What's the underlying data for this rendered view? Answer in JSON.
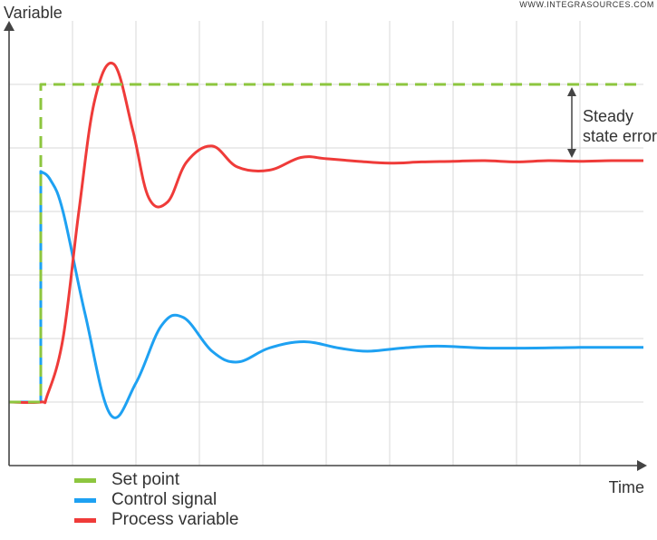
{
  "watermark": "WWW.INTEGRASOURCES.COM",
  "chart_data": {
    "type": "line",
    "ylabel": "Variable",
    "xlabel": "Time",
    "grid": true,
    "legend_placement": "bottom-left",
    "xlim": [
      0,
      10
    ],
    "ylim": [
      0,
      7
    ],
    "series": [
      {
        "name": "Set point",
        "color": "#8dc63f",
        "style": "dashed",
        "x": [
          0,
          0.5,
          0.5,
          10
        ],
        "y": [
          1,
          1,
          6,
          6
        ]
      },
      {
        "name": "Control signal",
        "color": "#1ea1f2",
        "style": "solid",
        "x": [
          0,
          0.5,
          0.5,
          0.65,
          0.85,
          1.2,
          1.6,
          2.0,
          2.4,
          2.75,
          3.2,
          3.6,
          4.1,
          4.65,
          5.2,
          5.65,
          6.2,
          6.75,
          7.5,
          8.3,
          9.0,
          10
        ],
        "y": [
          1,
          1,
          4.63,
          4.5,
          4.0,
          2.38,
          0.8,
          1.3,
          2.2,
          2.33,
          1.8,
          1.63,
          1.85,
          1.95,
          1.85,
          1.8,
          1.85,
          1.88,
          1.85,
          1.85,
          1.86,
          1.86
        ]
      },
      {
        "name": "Process variable",
        "color": "#ef3b39",
        "style": "solid",
        "x": [
          0,
          0.5,
          0.6,
          0.85,
          1.1,
          1.35,
          1.65,
          1.95,
          2.2,
          2.5,
          2.8,
          3.2,
          3.6,
          4.1,
          4.6,
          5.0,
          5.5,
          6.0,
          6.5,
          7.0,
          7.5,
          8.0,
          8.5,
          9.0,
          9.5,
          10
        ],
        "y": [
          1,
          1,
          1.1,
          2.0,
          4.0,
          5.75,
          6.32,
          5.28,
          4.22,
          4.15,
          4.78,
          5.03,
          4.7,
          4.65,
          4.85,
          4.83,
          4.79,
          4.76,
          4.78,
          4.79,
          4.8,
          4.78,
          4.8,
          4.79,
          4.8,
          4.8
        ]
      }
    ],
    "annotations": [
      {
        "lines": [
          "Steady",
          "state error"
        ],
        "y_from": 6,
        "y_to": 4.8,
        "x": 9.3
      }
    ]
  }
}
